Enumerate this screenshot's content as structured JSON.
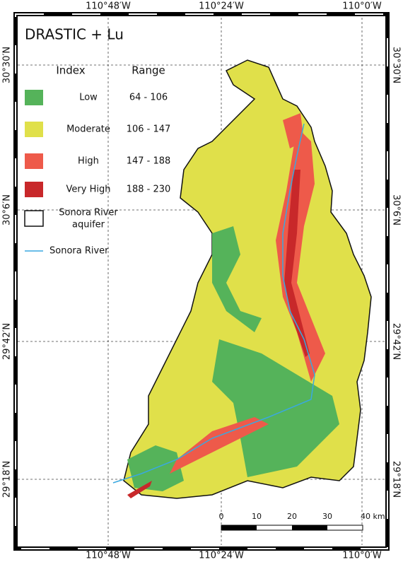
{
  "map": {
    "title": "DRASTIC + Lu",
    "legend": {
      "headers": [
        "Index",
        "Range"
      ],
      "items": [
        {
          "label": "Low",
          "range": "64 - 106",
          "color": "#55b35a"
        },
        {
          "label": "Moderate",
          "range": "106 - 147",
          "color": "#e0e04a"
        },
        {
          "label": "High",
          "range": "147 - 188",
          "color": "#ee5a4a"
        },
        {
          "label": "Very High",
          "range": "188 - 230",
          "color": "#c8282a"
        }
      ],
      "aquifer": [
        "Sonora River",
        "aquifer"
      ],
      "river": "Sonora River"
    },
    "frame": {
      "top": [
        "110°48′W",
        "110°24′W",
        "110°0′W"
      ],
      "bottom": [
        "110°48′W",
        "110°24′W",
        "110°0′W"
      ],
      "left": [
        "30°30′N",
        "30°6′N",
        "29°42′N",
        "29°18′N"
      ],
      "right": [
        "30°30′N",
        "30°6′N",
        "29°42′N",
        "29°18′N"
      ]
    },
    "scale_bar": [
      "0",
      "10",
      "20",
      "30",
      "40 km"
    ]
  }
}
